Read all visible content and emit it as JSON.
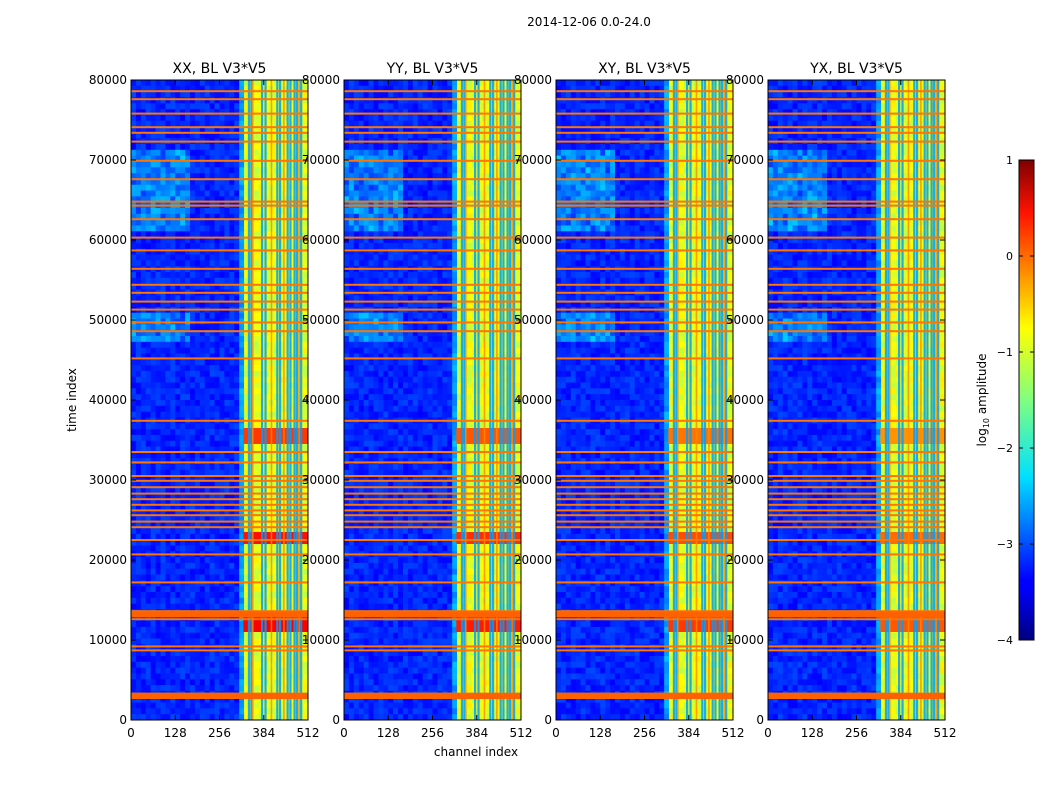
{
  "chart_data": {
    "type": "heatmap",
    "suptitle": "2014-12-06 0.0-24.0",
    "xlabel": "channel index",
    "ylabel": "time index",
    "xlim": [
      0,
      512
    ],
    "ylim": [
      0,
      80000
    ],
    "xticks": [
      0,
      128,
      256,
      384,
      512
    ],
    "yticks": [
      0,
      10000,
      20000,
      30000,
      40000,
      50000,
      60000,
      70000,
      80000
    ],
    "colorscale": "jet",
    "colorbar": {
      "label": "log10 amplitude",
      "label_parts": [
        "log",
        "10",
        " amplitude"
      ],
      "range": [
        -4,
        1
      ],
      "ticks": [
        {
          "value": 1,
          "text": "1"
        },
        {
          "value": 0,
          "text": "0"
        },
        {
          "value": -1,
          "text": "−1"
        },
        {
          "value": -2,
          "text": "−2"
        },
        {
          "value": -3,
          "text": "−3"
        },
        {
          "value": -4,
          "text": "−4"
        }
      ]
    },
    "panels": [
      {
        "title": "XX, BL V3*V5",
        "pol": "XX"
      },
      {
        "title": "YY, BL V3*V5",
        "pol": "YY"
      },
      {
        "title": "XY, BL V3*V5",
        "pol": "XY"
      },
      {
        "title": "YX, BL V3*V5",
        "pol": "YX"
      }
    ],
    "band": {
      "channel_start": 325,
      "channel_end": 512,
      "level": -1,
      "dark_columns": [
        338,
        345,
        376,
        386,
        420,
        428,
        450,
        458,
        470,
        477,
        489
      ],
      "orange_columns": [
        350,
        404,
        440,
        484
      ]
    },
    "baseline_level": -3.2,
    "rfi_rows": [
      3000,
      3300,
      8700,
      9200,
      12600,
      13000,
      13300,
      13600,
      17200,
      20700,
      22500,
      24100,
      24800,
      25600,
      26200,
      26900,
      27600,
      28300,
      29100,
      29900,
      30500,
      32200,
      33500,
      37400,
      45200,
      48600,
      49700,
      51300,
      52300,
      53400,
      54400,
      56400,
      58700,
      60300,
      62600,
      64300,
      64800,
      67600,
      69900,
      72300,
      73400,
      74100,
      75800,
      77600,
      78600
    ],
    "strong_blocks": [
      {
        "t_start": 11000,
        "t_end": 13500,
        "level": 0.4
      },
      {
        "t_start": 22000,
        "t_end": 23500,
        "level": 0.3
      },
      {
        "t_start": 34500,
        "t_end": 36500,
        "level": 0.1
      }
    ]
  }
}
